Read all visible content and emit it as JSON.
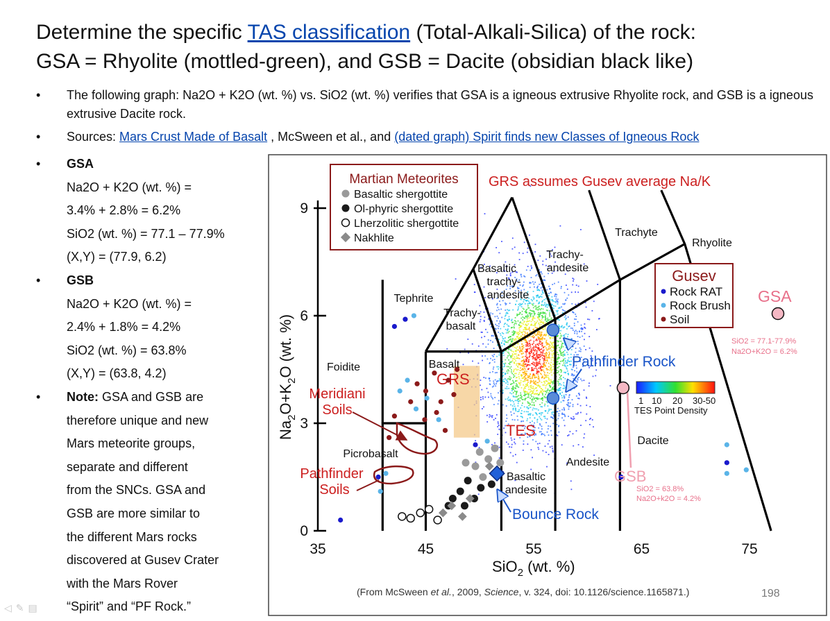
{
  "slide": {
    "title_pre": "Determine the specific ",
    "title_link": "TAS classification",
    "title_post": " (Total-Alkali-Silica) of the rock:",
    "title_line2": "GSA = Rhyolite (mottled-green), and GSB = Dacite (obsidian black like)",
    "bullet_char": "•",
    "bullet1": "The following graph: Na2O + K2O (wt. %) vs. SiO2 (wt. %) verifies that GSA is a  igneous extrusive Rhyolite rock, and GSB is a igneous extrusive Dacite rock.",
    "bullet2_pre": "Sources: ",
    "bullet2_link1": "Mars Crust Made of Basalt",
    "bullet2_mid": " ,  McSween et al., and ",
    "bullet2_link2": "(dated graph) Spirit finds new Classes of Igneous Rock",
    "gsa": {
      "heading": "GSA",
      "line1": "Na2O + K2O (wt. %) =",
      "line2": "3.4% + 2.8% = 6.2%",
      "line3": "SiO2 (wt. %) = 77.1 – 77.9%",
      "line4": "(X,Y) = (77.9, 6.2)"
    },
    "gsb": {
      "heading": "GSB",
      "line1": "Na2O + K2O (wt. %) =",
      "line2": "2.4% + 1.8% = 4.2%",
      "line3": "SiO2 (wt. %) = 63.8%",
      "line4": "(X,Y) = (63.8, 4.2)"
    },
    "note_label": "Note:",
    "note_lines": [
      " GSA and GSB are",
      "therefore unique and new",
      "Mars meteorite groups,",
      "separate and different",
      "from the SNCs. GSA and",
      "GSB are more similar to",
      "the different Mars rocks",
      "discovered at Gusev Crater",
      "with the Mars Rover",
      "“Spirit” and “PF Rock.”"
    ],
    "slide_number": "198"
  },
  "colors": {
    "link": "#0645ad",
    "meteorite_box": "#8b1a1a",
    "grs_red": "#cc2020",
    "gusev_box": "#8b1a1a",
    "pathfinder_blue": "#1a55c8",
    "gsa_pink": "#e8708a",
    "gsb_pink": "#f0a0b0",
    "grs_fill": "#f4c98a"
  },
  "chart_data": {
    "type": "scatter",
    "title": "GRS assumes Gusev average Na/K",
    "xlabel_main": "SiO",
    "xlabel_sub": "2",
    "xlabel_tail": " (wt. %)",
    "ylabel_a": "Na",
    "ylabel_b": "2",
    "ylabel_c": "O+K",
    "ylabel_d": "2",
    "ylabel_e": "O (wt. %)",
    "xlim": [
      35,
      80
    ],
    "ylim": [
      0,
      9.5
    ],
    "x_ticks": [
      35,
      45,
      55,
      65,
      75
    ],
    "y_ticks": [
      0,
      3,
      6,
      9
    ],
    "field_labels": {
      "foidite": "Foidite",
      "tephrite": "Tephrite",
      "trachybasalt_1": "Trachy-",
      "trachybasalt_2": "basalt",
      "basaltic_trachy_1": "Basaltic",
      "basaltic_trachy_2": "trachy-",
      "basaltic_trachy_3": "andesite",
      "trachyandesite_1": "Trachy-",
      "trachyandesite_2": "andesite",
      "trachyte": "Trachyte",
      "rhyolite": "Rhyolite",
      "basalt": "Basalt",
      "picrobasalt": "Picrobasalt",
      "basaltic_andesite_1": "Basaltic",
      "basaltic_andesite_2": "andesite",
      "andesite": "Andesite",
      "dacite": "Dacite"
    },
    "region_labels": {
      "grs": "GRS",
      "tes": "TES",
      "meridiani_1": "Meridiani",
      "meridiani_2": "Soils",
      "pathfinder_soils_1": "Pathfinder",
      "pathfinder_soils_2": "Soils",
      "pathfinder_rock": "Pathfinder Rock",
      "bounce_rock": "Bounce Rock"
    },
    "martian_legend": {
      "title": "Martian Meteorites",
      "items": [
        "Basaltic shergottite",
        "Ol-phyric shergottite",
        "Lherzolitic shergottite",
        "Nakhlite"
      ]
    },
    "gusev_legend": {
      "title": "Gusev",
      "items": [
        "Rock RAT",
        "Rock Brush",
        "Soil"
      ]
    },
    "density_legend": {
      "ticks": [
        "1",
        "10",
        "20",
        "30-50"
      ],
      "label": "TES Point Density"
    },
    "gsa": {
      "label": "GSA",
      "x": 77.9,
      "y": 6.2,
      "note1": "SiO2 = 77.1-77.9%",
      "note2": "Na2O+K2O = 6.2%"
    },
    "gsb": {
      "label": "GSB",
      "x": 63.8,
      "y": 4.2,
      "note1": "SiO2 = 63.8%",
      "note2": "Na2O+k2O = 4.2%"
    },
    "tas_boundaries": [
      [
        [
          41,
          0
        ],
        [
          41,
          3
        ],
        [
          45,
          3
        ]
      ],
      [
        [
          41,
          3
        ],
        [
          41,
          7
        ]
      ],
      [
        [
          45,
          0
        ],
        [
          45,
          5
        ]
      ],
      [
        [
          45,
          5
        ],
        [
          49.4,
          7.3
        ],
        [
          53,
          9.3
        ]
      ],
      [
        [
          52,
          0
        ],
        [
          52,
          5
        ],
        [
          57,
          5.9
        ],
        [
          63,
          7
        ]
      ],
      [
        [
          57,
          0
        ],
        [
          57,
          5.9
        ]
      ],
      [
        [
          63,
          0
        ],
        [
          63,
          7
        ]
      ],
      [
        [
          45,
          5
        ],
        [
          52,
          5
        ]
      ],
      [
        [
          49.4,
          7.3
        ],
        [
          52,
          5
        ]
      ],
      [
        [
          53,
          9.3
        ],
        [
          57,
          5.9
        ]
      ],
      [
        [
          57.6,
          11.7
        ],
        [
          63,
          7
        ]
      ],
      [
        [
          61,
          13.5
        ],
        [
          69,
          8
        ],
        [
          77,
          0
        ]
      ],
      [
        [
          63,
          7
        ],
        [
          69,
          8
        ]
      ]
    ],
    "series": [
      {
        "name": "Basaltic shergottite",
        "color": "#9a9a9a",
        "marker": "circle",
        "points": [
          [
            50,
            2.2
          ],
          [
            50.8,
            2.0
          ],
          [
            49.6,
            1.8
          ],
          [
            51.4,
            2.3
          ],
          [
            50.3,
            1.5
          ],
          [
            48.7,
            1.9
          ],
          [
            51.9,
            1.9
          ]
        ]
      },
      {
        "name": "Ol-phyric shergottite",
        "color": "#1a1a1a",
        "marker": "circle",
        "points": [
          [
            47.5,
            0.9
          ],
          [
            48.2,
            1.1
          ],
          [
            48.9,
            1.4
          ],
          [
            49.5,
            0.9
          ],
          [
            50.1,
            1.2
          ],
          [
            47.1,
            0.7
          ],
          [
            51.1,
            1.3
          ],
          [
            48.6,
            0.7
          ]
        ]
      },
      {
        "name": "Lherzolitic shergottite",
        "color": "#ffffff",
        "marker": "open-circle",
        "points": [
          [
            42.8,
            0.4
          ],
          [
            43.6,
            0.35
          ],
          [
            44.5,
            0.5
          ],
          [
            45.3,
            0.6
          ],
          [
            46.1,
            0.3
          ]
        ]
      },
      {
        "name": "Nakhlite",
        "color": "#8a8a8a",
        "marker": "diamond",
        "points": [
          [
            46.6,
            0.5
          ],
          [
            47.4,
            0.7
          ],
          [
            48.4,
            0.4
          ],
          [
            49.1,
            0.9
          ],
          [
            50.9,
            1.8
          ]
        ]
      },
      {
        "name": "Rock RAT",
        "color": "#1a1acc",
        "marker": "circle",
        "points": [
          [
            37.1,
            0.3
          ],
          [
            40.6,
            1.5
          ],
          [
            42.1,
            5.7
          ],
          [
            43.1,
            5.9
          ],
          [
            49.6,
            2.4
          ],
          [
            72.9,
            1.9
          ],
          [
            63.1,
            1.5
          ]
        ]
      },
      {
        "name": "Rock Brush",
        "color": "#5ab4e8",
        "marker": "circle",
        "points": [
          [
            40.8,
            1.1
          ],
          [
            41.3,
            1.6
          ],
          [
            42.6,
            3.9
          ],
          [
            43.3,
            4.2
          ],
          [
            44.1,
            3.4
          ],
          [
            45.1,
            3.7
          ],
          [
            46.2,
            3.1
          ],
          [
            43.9,
            6.0
          ],
          [
            72.9,
            2.4
          ],
          [
            74.7,
            1.7
          ],
          [
            72.9,
            1.6
          ],
          [
            50.7,
            2.5
          ]
        ]
      },
      {
        "name": "Soil",
        "color": "#8b1a1a",
        "marker": "circle",
        "points": [
          [
            44.2,
            4.1
          ],
          [
            45.0,
            3.9
          ],
          [
            45.8,
            4.4
          ],
          [
            46.4,
            3.6
          ],
          [
            47.1,
            4.2
          ],
          [
            47.6,
            3.8
          ],
          [
            46.0,
            3.3
          ],
          [
            44.9,
            3.1
          ],
          [
            47.9,
            4.5
          ],
          [
            46.8,
            2.8
          ],
          [
            42.1,
            3.2
          ],
          [
            41.6,
            2.6
          ],
          [
            43.6,
            3.6
          ]
        ]
      },
      {
        "name": "Pathfinder Rock",
        "color": "#5a8cd8",
        "marker": "circle",
        "points": [
          [
            56.8,
            5.6
          ],
          [
            56.8,
            3.7
          ]
        ]
      },
      {
        "name": "Bounce Rock",
        "color": "#2060d8",
        "marker": "diamond",
        "points": [
          [
            51.6,
            1.6
          ]
        ]
      }
    ],
    "grs_box": {
      "x": [
        47.6,
        50
      ],
      "y": [
        2.6,
        4.6
      ]
    },
    "tes_cloud": {
      "center": [
        55.0,
        4.9
      ],
      "sd": [
        2.2,
        1.15
      ],
      "count": 2600
    },
    "credit": "(From McSween et al., 2009, Science, v. 324, doi: 10.1126/science.1165871.)",
    "credit_pre": "(From McSween ",
    "credit_em": "et al.",
    "credit_mid": ", 2009, ",
    "credit_em2": "Science",
    "credit_post": ", v. 324, doi: 10.1126/science.1165871.)"
  }
}
